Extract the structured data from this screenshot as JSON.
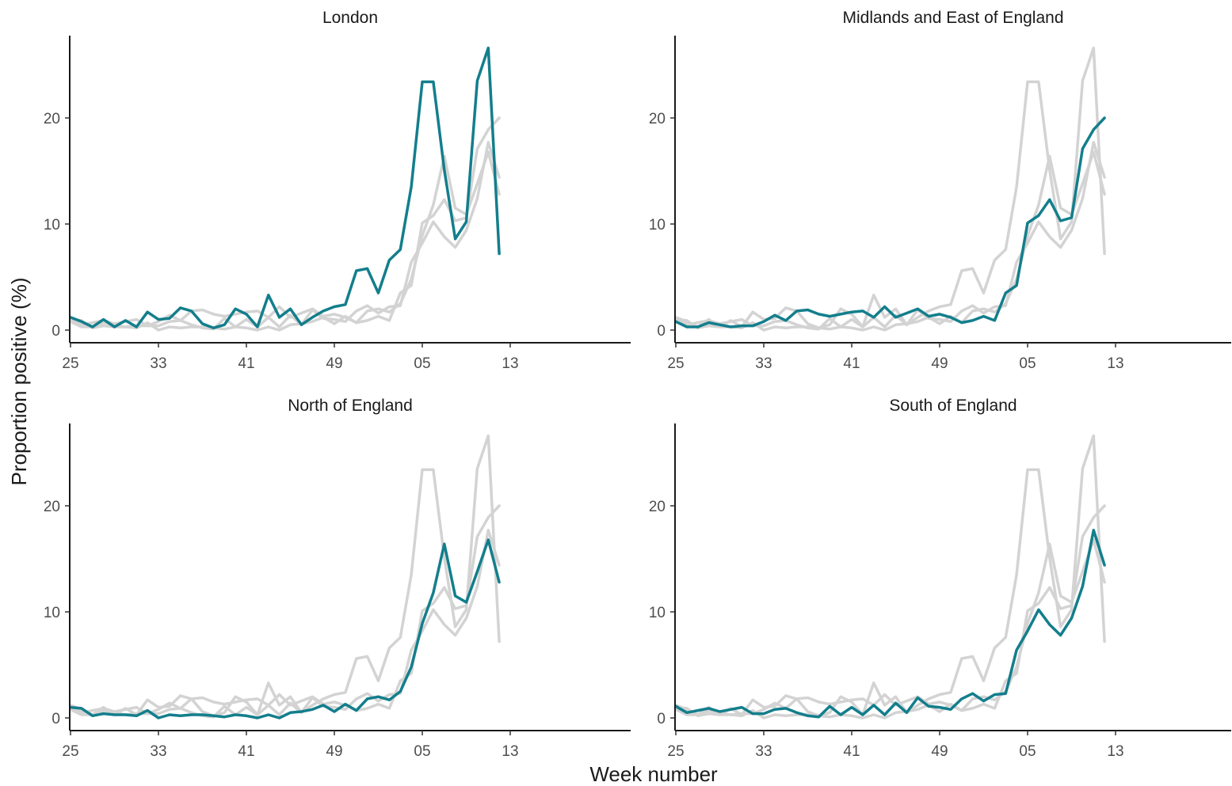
{
  "colors": {
    "highlight": "#137e8c",
    "background": "#d3d3d3"
  },
  "chart_data": {
    "type": "line",
    "facets": [
      "London",
      "Midlands and East of England",
      "North of England",
      "South of England"
    ],
    "xlabel": "Week number",
    "ylabel": "Proportion positive (%)",
    "x_tick_labels": [
      "25",
      "33",
      "41",
      "49",
      "05",
      "13"
    ],
    "y_tick_labels": [
      "0",
      "10",
      "20"
    ],
    "ylim": [
      0,
      27
    ],
    "grid": false,
    "series": [
      {
        "name": "London",
        "values": [
          1.2,
          0.8,
          0.3,
          1.0,
          0.3,
          0.9,
          0.3,
          1.7,
          1.0,
          1.1,
          2.1,
          1.8,
          0.6,
          0.2,
          0.5,
          2.0,
          1.5,
          0.3,
          3.3,
          1.2,
          2.0,
          0.5,
          1.2,
          1.8,
          2.2,
          2.4,
          5.6,
          5.8,
          3.5,
          6.6,
          7.6,
          13.5,
          23.4,
          23.4,
          15.1,
          8.6,
          10.2,
          23.5,
          26.6,
          7.2
        ]
      },
      {
        "name": "Midlands and East of England",
        "values": [
          0.8,
          0.3,
          0.3,
          0.7,
          0.5,
          0.3,
          0.4,
          0.4,
          0.8,
          1.4,
          0.9,
          1.8,
          1.9,
          1.5,
          1.3,
          1.5,
          1.7,
          1.8,
          1.2,
          2.2,
          1.2,
          1.6,
          2.0,
          1.3,
          1.5,
          1.2,
          0.7,
          0.9,
          1.3,
          0.9,
          3.5,
          4.2,
          10.1,
          10.8,
          12.3,
          10.3,
          10.6,
          17.1,
          18.9,
          20.0
        ]
      },
      {
        "name": "North of England",
        "values": [
          1.0,
          0.9,
          0.2,
          0.4,
          0.3,
          0.3,
          0.2,
          0.7,
          0.0,
          0.3,
          0.2,
          0.3,
          0.3,
          0.2,
          0.1,
          0.3,
          0.2,
          0.0,
          0.3,
          0.0,
          0.5,
          0.6,
          0.8,
          1.2,
          0.6,
          1.3,
          0.7,
          1.8,
          2.0,
          1.7,
          2.5,
          4.8,
          8.9,
          11.8,
          16.4,
          11.5,
          10.9,
          13.8,
          16.8,
          12.8
        ]
      },
      {
        "name": "South of England",
        "values": [
          1.1,
          0.5,
          0.7,
          0.9,
          0.6,
          0.8,
          1.0,
          0.4,
          0.4,
          0.8,
          0.9,
          0.5,
          0.2,
          0.1,
          1.1,
          0.3,
          1.0,
          0.3,
          1.2,
          0.3,
          1.4,
          0.5,
          1.9,
          1.1,
          1.0,
          0.8,
          1.8,
          2.3,
          1.6,
          2.2,
          2.3,
          6.4,
          8.2,
          10.2,
          8.8,
          7.8,
          9.4,
          12.4,
          17.7,
          14.4
        ]
      }
    ]
  }
}
